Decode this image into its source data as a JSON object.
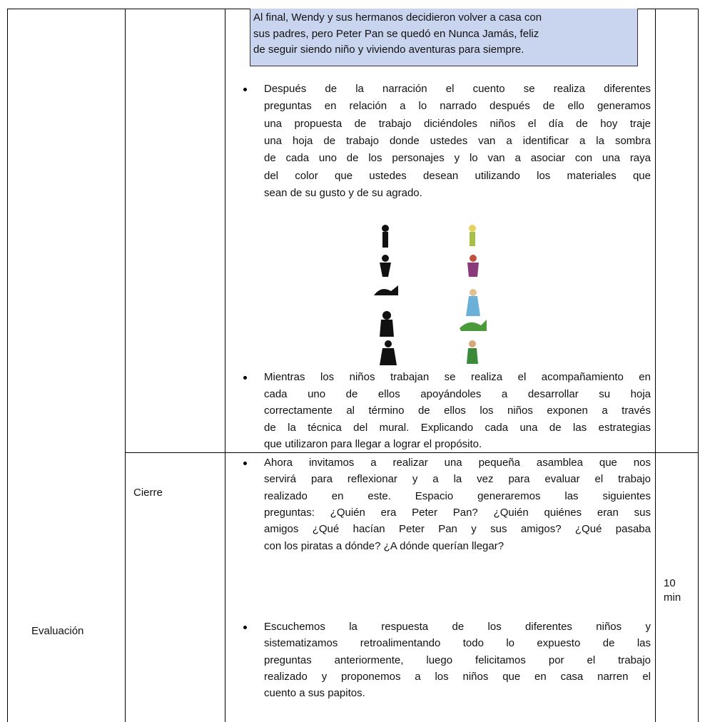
{
  "box_lines": [
    "Al final, Wendy y sus hermanos decidieron volver a casa con",
    "sus padres, pero Peter Pan se quedó en Nunca Jamás, feliz",
    "de seguir siendo niño y viviendo aventuras para siempre."
  ],
  "desarrollo_bullets": [
    {
      "lines": [
        "Después de la narración el cuento se realiza diferentes",
        "preguntas en relación a lo narrado después de ello generamos",
        "una propuesta de trabajo diciéndoles niños el día de hoy traje",
        "una hoja de trabajo donde ustedes van a identificar a la sombra",
        "de cada uno de los personajes y lo van a asociar con una raya",
        "del color que ustedes desean utilizando los materiales que",
        "sean de su gusto y de su agrado."
      ]
    },
    {
      "lines": [
        "Mientras los niños trabajan se realiza el acompañamiento en",
        "cada uno de ellos apoyándoles a desarrollar su hoja",
        "correctamente al término de ellos los niños exponen a través",
        "de la técnica del mural. Explicando cada una de las estrategias",
        "que utilizaron para llegar a lograr el propósito."
      ]
    }
  ],
  "cierre": {
    "label": "Cierre",
    "time": "10 min",
    "bullets": [
      {
        "lines": [
          "Ahora invitamos a realizar una pequeña asamblea que nos",
          "servirá para reflexionar y a la vez para evaluar el trabajo",
          "realizado en este. Espacio generaremos las siguientes",
          "preguntas: ¿Quién era Peter Pan? ¿Quién quiénes eran sus",
          "amigos ¿Qué hacían Peter Pan y sus amigos? ¿Qué pasaba",
          "con los piratas a dónde? ¿A dónde querían llegar?"
        ]
      },
      {
        "lines": [
          "Escuchemos la respuesta de los diferentes niños y",
          "sistematizamos retroalimentando todo lo expuesto de las",
          "preguntas anteriormente, luego felicitamos por el trabajo",
          "realizado y proponemos a los niños que en casa narren el",
          "cuento a sus papitos."
        ]
      }
    ]
  },
  "stage": "Evaluación"
}
